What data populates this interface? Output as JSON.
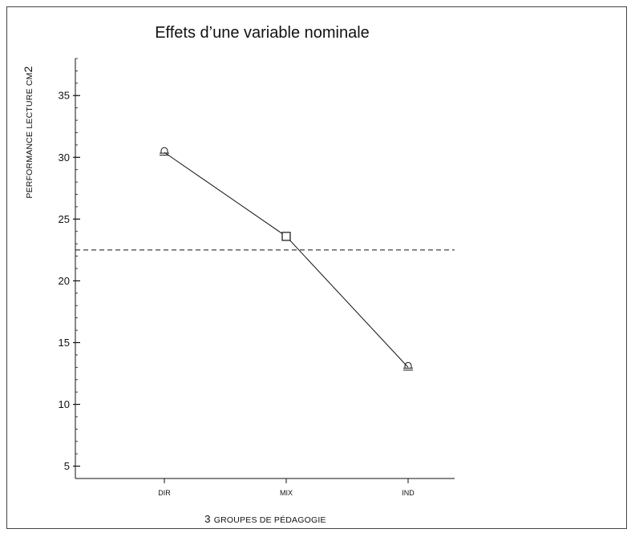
{
  "chart_data": {
    "type": "line",
    "title": "Effets d’une variable nominale",
    "xlabel": {
      "prefix": "3",
      "rest": "GROUPES DE PÉDAGOGIE"
    },
    "ylabel": {
      "main": "PERFORMANCE LECTURE CM",
      "suffix": "2"
    },
    "categories": [
      "DIR",
      "MIX",
      "IND"
    ],
    "values": [
      30.4,
      23.6,
      13.0
    ],
    "markers": [
      "pictogram",
      "square",
      "pictogram"
    ],
    "mean_line": 22.5,
    "ylim": [
      4,
      38
    ],
    "yticks": [
      5,
      10,
      15,
      20,
      25,
      30,
      35
    ],
    "grid": false,
    "legend": "none"
  }
}
